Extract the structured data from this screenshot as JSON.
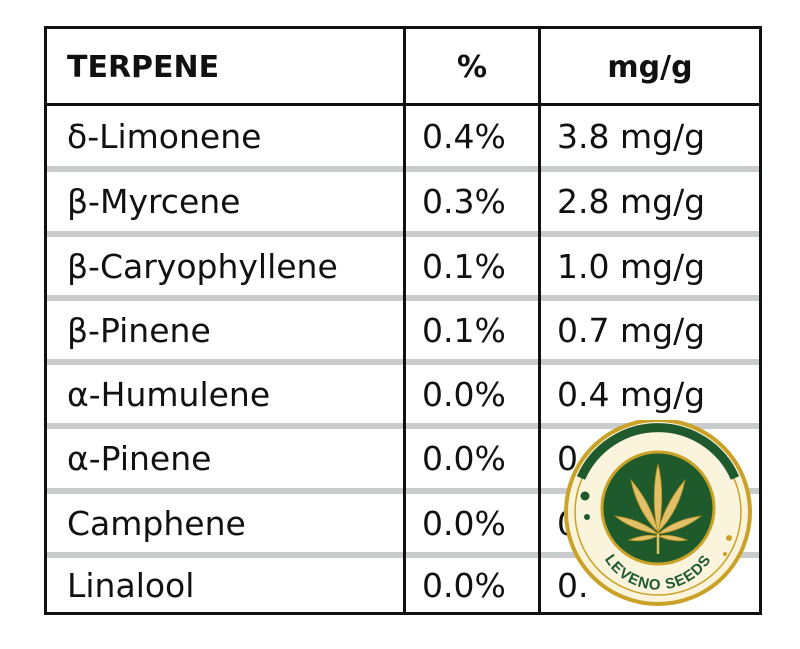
{
  "table": {
    "headers": [
      "TERPENE",
      "%",
      "mg/g"
    ],
    "rows": [
      {
        "terpene": "δ-Limonene",
        "percent": "0.4%",
        "mg": "3.8 mg/g"
      },
      {
        "terpene": "β-Myrcene",
        "percent": "0.3%",
        "mg": "2.8 mg/g"
      },
      {
        "terpene": "β-Caryophyllene",
        "percent": "0.1%",
        "mg": "1.0 mg/g"
      },
      {
        "terpene": "β-Pinene",
        "percent": "0.1%",
        "mg": "0.7 mg/g"
      },
      {
        "terpene": "α-Humulene",
        "percent": "0.0%",
        "mg": "0.4 mg/g"
      },
      {
        "terpene": "α-Pinene",
        "percent": "0.0%",
        "mg": "0"
      },
      {
        "terpene": "Camphene",
        "percent": "0.0%",
        "mg": "0"
      },
      {
        "terpene": "Linalool",
        "percent": "0.0%",
        "mg": "0."
      }
    ]
  },
  "logo": {
    "text": "LEVENO SEEDS",
    "icon": "cannabis-leaf-icon",
    "colors": {
      "green": "#1e5a2b",
      "gold": "#c9a227",
      "cream": "#fbf4dc"
    }
  }
}
